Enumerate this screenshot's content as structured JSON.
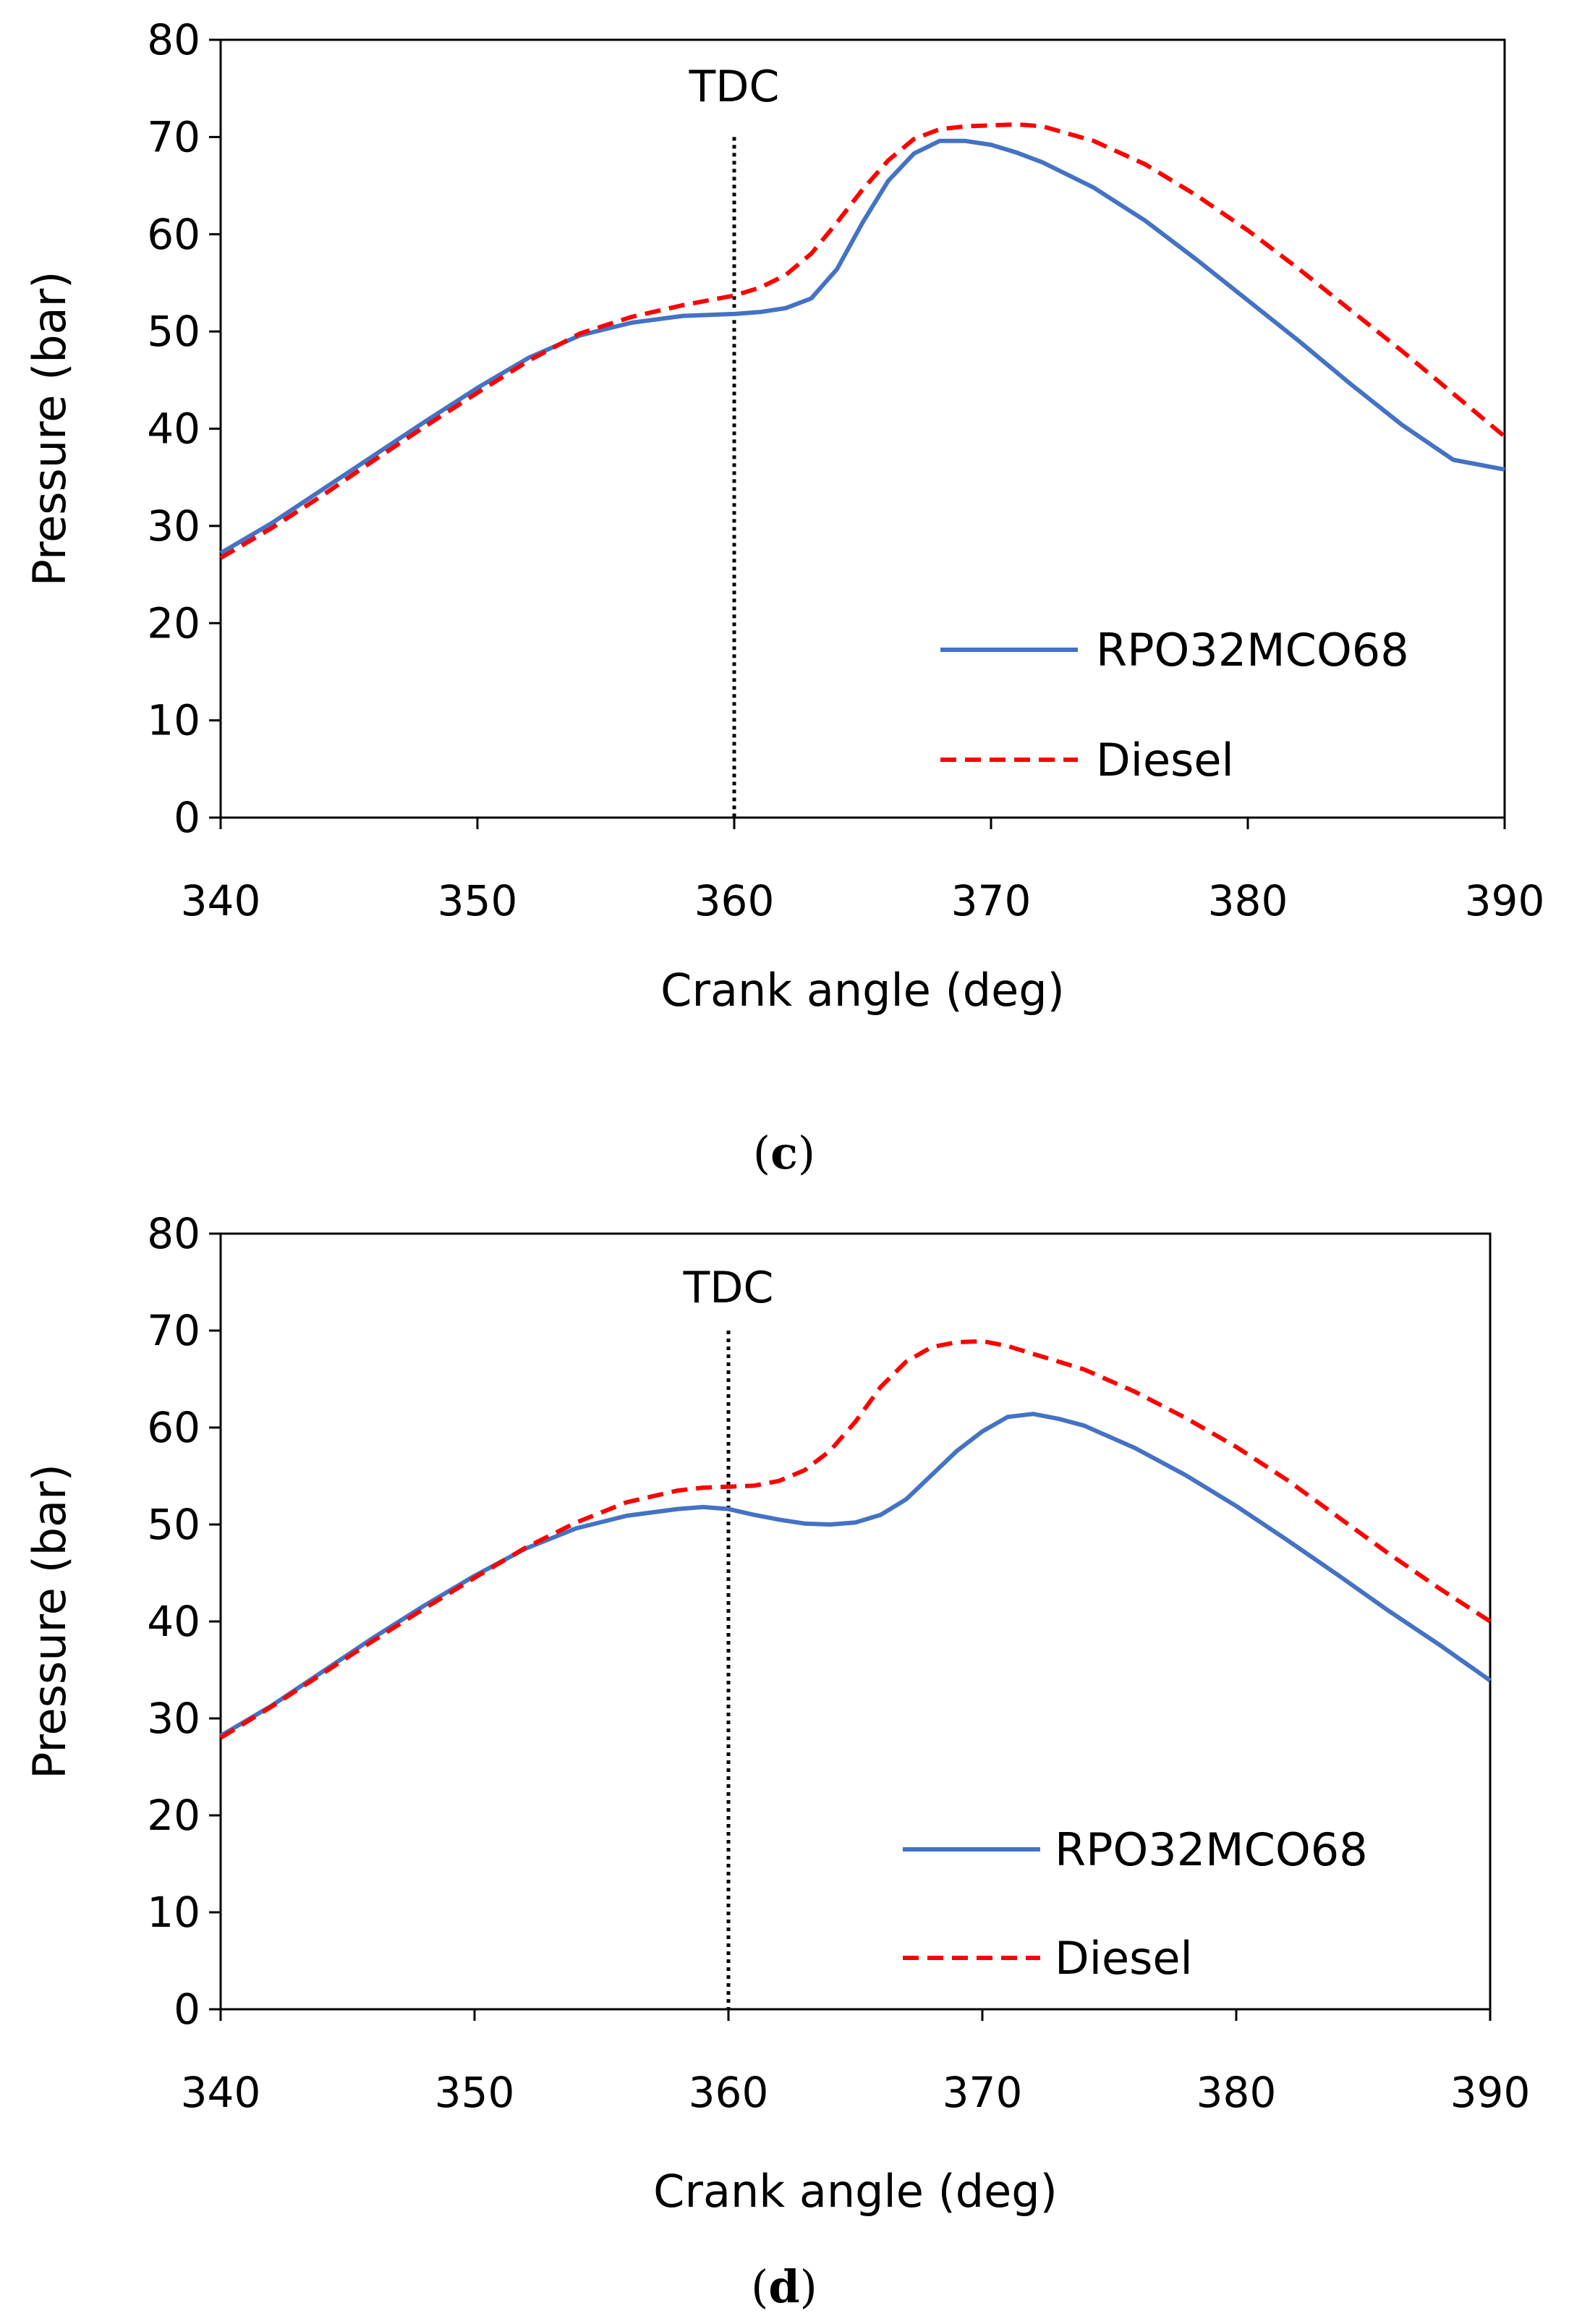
{
  "chart_data": [
    {
      "type": "line",
      "panel_label": {
        "open": "(",
        "letter": "c",
        "close": ")"
      },
      "xlabel": "Crank angle (deg)",
      "ylabel": "Pressure (bar)",
      "xlim": [
        340,
        390
      ],
      "ylim": [
        0,
        80
      ],
      "x_ticks": [
        340,
        350,
        360,
        370,
        380,
        390
      ],
      "y_ticks": [
        0,
        10,
        20,
        30,
        40,
        50,
        60,
        70,
        80
      ],
      "grid": false,
      "legend_position": "bottom-right",
      "annotation": {
        "text": "TDC",
        "x": 360,
        "y_from": 0,
        "y_to": 70
      },
      "series": [
        {
          "name": "RPO32MCO68",
          "color": "#4472c4",
          "style": "solid",
          "x": [
            340,
            342,
            344,
            346,
            348,
            350,
            352,
            354,
            356,
            358,
            359,
            360,
            361,
            362,
            363,
            364,
            365,
            366,
            367,
            368,
            369,
            370,
            371,
            372,
            374,
            376,
            378,
            380,
            382,
            384,
            386,
            388,
            390
          ],
          "values": [
            27.2,
            30.3,
            33.8,
            37.3,
            40.8,
            44.2,
            47.3,
            49.6,
            50.9,
            51.6,
            51.7,
            51.8,
            52.0,
            52.4,
            53.4,
            56.4,
            61.2,
            65.5,
            68.3,
            69.6,
            69.6,
            69.2,
            68.4,
            67.4,
            64.8,
            61.4,
            57.4,
            53.2,
            49.0,
            44.6,
            40.4,
            36.8,
            35.8
          ]
        },
        {
          "name": "Diesel",
          "color": "#ff0000",
          "style": "dashed",
          "x": [
            340,
            342,
            344,
            346,
            348,
            350,
            352,
            354,
            356,
            358,
            359,
            360,
            361,
            362,
            363,
            364,
            365,
            366,
            367,
            368,
            369,
            370,
            371,
            372,
            374,
            376,
            378,
            380,
            382,
            384,
            386,
            388,
            390
          ],
          "values": [
            26.7,
            29.8,
            33.2,
            36.8,
            40.3,
            43.7,
            47.0,
            49.8,
            51.5,
            52.7,
            53.2,
            53.7,
            54.5,
            55.8,
            58.0,
            61.2,
            64.6,
            67.6,
            69.8,
            70.8,
            71.1,
            71.2,
            71.3,
            71.1,
            69.6,
            67.2,
            64.0,
            60.4,
            56.4,
            52.2,
            48.0,
            43.6,
            39.2
          ]
        }
      ]
    },
    {
      "type": "line",
      "panel_label": {
        "open": "(",
        "letter": "d",
        "close": ")"
      },
      "xlabel": "Crank angle (deg)",
      "ylabel": "Pressure (bar)",
      "xlim": [
        340,
        390
      ],
      "ylim": [
        0,
        80
      ],
      "x_ticks": [
        340,
        350,
        360,
        370,
        380,
        390
      ],
      "y_ticks": [
        0,
        10,
        20,
        30,
        40,
        50,
        60,
        70,
        80
      ],
      "grid": false,
      "legend_position": "bottom-right",
      "annotation": {
        "text": "TDC",
        "x": 360,
        "y_from": 0,
        "y_to": 70
      },
      "series": [
        {
          "name": "RPO32MCO68",
          "color": "#4472c4",
          "style": "solid",
          "x": [
            340,
            342,
            344,
            346,
            348,
            350,
            352,
            354,
            356,
            358,
            359,
            360,
            361,
            362,
            363,
            364,
            365,
            366,
            367,
            368,
            369,
            370,
            371,
            372,
            373,
            374,
            376,
            378,
            380,
            382,
            384,
            386,
            388,
            390
          ],
          "values": [
            28.2,
            31.3,
            34.8,
            38.3,
            41.6,
            44.7,
            47.5,
            49.6,
            50.9,
            51.6,
            51.8,
            51.6,
            51.0,
            50.5,
            50.1,
            50.0,
            50.2,
            51.0,
            52.6,
            55.1,
            57.6,
            59.6,
            61.1,
            61.4,
            60.9,
            60.2,
            57.9,
            55.1,
            51.9,
            48.4,
            44.8,
            41.1,
            37.6,
            33.9
          ]
        },
        {
          "name": "Diesel",
          "color": "#ff0000",
          "style": "dashed",
          "x": [
            340,
            342,
            344,
            346,
            348,
            350,
            352,
            354,
            356,
            358,
            359,
            360,
            361,
            362,
            363,
            364,
            365,
            366,
            367,
            368,
            369,
            370,
            371,
            372,
            374,
            376,
            378,
            380,
            382,
            384,
            386,
            388,
            390
          ],
          "values": [
            28.0,
            31.2,
            34.6,
            38.0,
            41.3,
            44.5,
            47.6,
            50.2,
            52.3,
            53.5,
            53.8,
            53.9,
            54.0,
            54.5,
            55.6,
            57.6,
            60.6,
            64.2,
            66.8,
            68.3,
            68.8,
            68.9,
            68.4,
            67.6,
            66.0,
            63.7,
            61.0,
            58.0,
            54.6,
            50.8,
            47.0,
            43.4,
            40.0
          ]
        }
      ]
    }
  ]
}
